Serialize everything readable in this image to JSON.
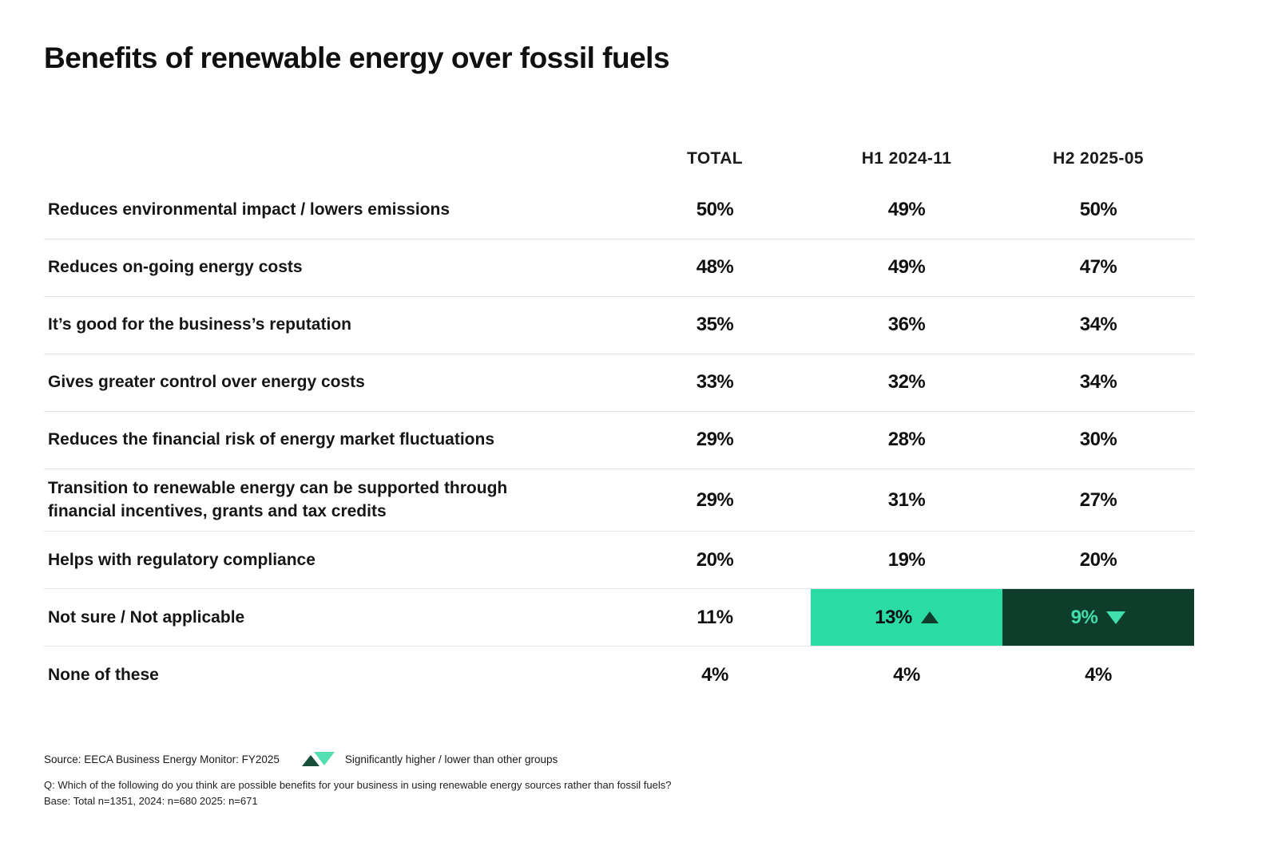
{
  "title": "Benefits of renewable energy over fossil fuels",
  "colors": {
    "highlight_light": "#2BDBA4",
    "highlight_dark": "#0E3D2B",
    "highlight_dark_text": "#41DFAE",
    "divider": "#e4e4e4"
  },
  "table": {
    "columns": [
      "TOTAL",
      "H1 2024-11",
      "H2 2025-05"
    ],
    "rows": [
      {
        "label": "Reduces environmental impact / lowers emissions",
        "total": "50%",
        "h1": "49%",
        "h2": "50%"
      },
      {
        "label": "Reduces on-going energy costs",
        "total": "48%",
        "h1": "49%",
        "h2": "47%"
      },
      {
        "label": "It’s good for the business’s reputation",
        "total": "35%",
        "h1": "36%",
        "h2": "34%"
      },
      {
        "label": "Gives greater control over energy costs",
        "total": "33%",
        "h1": "32%",
        "h2": "34%"
      },
      {
        "label": "Reduces the financial risk of energy market fluctuations",
        "total": "29%",
        "h1": "28%",
        "h2": "30%"
      },
      {
        "label": "Transition to renewable energy can be supported through\nfinancial incentives, grants and tax credits",
        "total": "29%",
        "h1": "31%",
        "h2": "27%"
      },
      {
        "label": "Helps with regulatory compliance",
        "total": "20%",
        "h1": "19%",
        "h2": "20%"
      },
      {
        "label": "Not sure / Not applicable",
        "total": "11%",
        "h1": "13%",
        "h2": "9%",
        "h1_marker": "up",
        "h2_marker": "down",
        "h1_style": "highlight-light",
        "h2_style": "highlight-dark"
      },
      {
        "label": "None of these",
        "total": "4%",
        "h1": "4%",
        "h2": "4%"
      }
    ]
  },
  "footer": {
    "source": "Source: EECA Business Energy Monitor: FY2025",
    "legend": "Significantly higher / lower than other groups",
    "question": "Q: Which of the following do you think are possible benefits for your business in using renewable energy sources rather than fossil fuels?",
    "base": "Base: Total n=1351, 2024: n=680 2025: n=671"
  },
  "chart_data": {
    "type": "table",
    "title": "Benefits of renewable energy over fossil fuels",
    "units": "%",
    "categories": [
      "Reduces environmental impact / lowers emissions",
      "Reduces on-going energy costs",
      "It’s good for the business’s reputation",
      "Gives greater control over energy costs",
      "Reduces the financial risk of energy market fluctuations",
      "Transition to renewable energy can be supported through financial incentives, grants and tax credits",
      "Helps with regulatory compliance",
      "Not sure / Not applicable",
      "None of these"
    ],
    "series": [
      {
        "name": "TOTAL",
        "values": [
          50,
          48,
          35,
          33,
          29,
          29,
          20,
          11,
          4
        ]
      },
      {
        "name": "H1 2024-11",
        "values": [
          49,
          49,
          36,
          32,
          28,
          31,
          19,
          13,
          4
        ]
      },
      {
        "name": "H2 2025-05",
        "values": [
          50,
          47,
          34,
          34,
          30,
          27,
          20,
          9,
          4
        ]
      }
    ],
    "annotations": [
      {
        "row": "Not sure / Not applicable",
        "column": "H1 2024-11",
        "marker": "significantly-higher"
      },
      {
        "row": "Not sure / Not applicable",
        "column": "H2 2025-05",
        "marker": "significantly-lower"
      }
    ]
  }
}
